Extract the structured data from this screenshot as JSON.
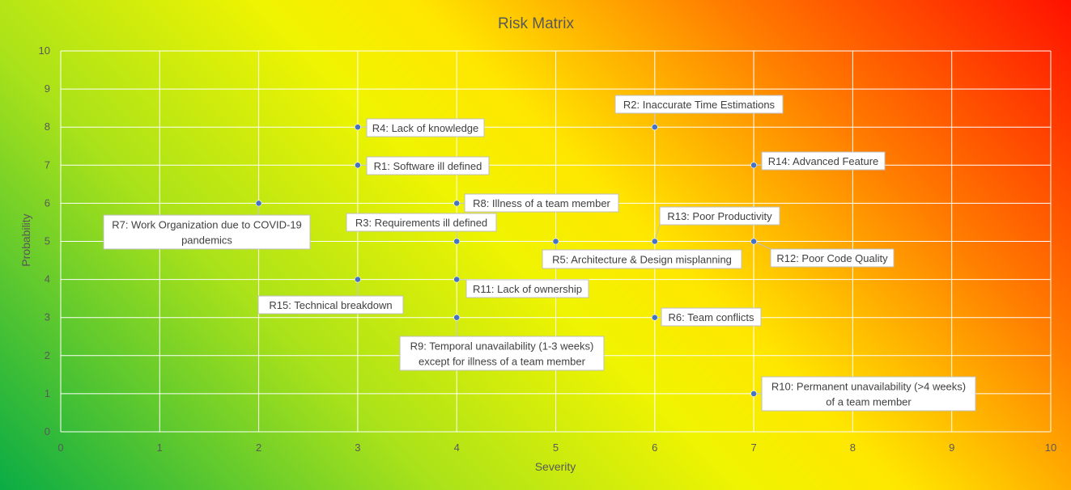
{
  "chart_data": {
    "type": "scatter",
    "title": "Risk Matrix",
    "xlabel": "Severity",
    "ylabel": "Probability",
    "xlim": [
      0,
      10
    ],
    "ylim": [
      0,
      10
    ],
    "xticks": [
      0,
      1,
      2,
      3,
      4,
      5,
      6,
      7,
      8,
      9,
      10
    ],
    "yticks": [
      0,
      1,
      2,
      3,
      4,
      5,
      6,
      7,
      8,
      9,
      10
    ],
    "grid": true,
    "background": "diagonal gradient green (bottom-left) to yellow to red (top-right)",
    "colors": {
      "point": "#4472c4",
      "grid": "#ffffff",
      "callout_fill": "#ffffff",
      "callout_border": "#bfbfbf",
      "text": "#595959"
    },
    "points": [
      {
        "id": "R1",
        "x": 3,
        "y": 7,
        "label": [
          "R1: Software ill defined"
        ]
      },
      {
        "id": "R2",
        "x": 6,
        "y": 8,
        "label": [
          "R2: Inaccurate Time Estimations"
        ]
      },
      {
        "id": "R3",
        "x": 4,
        "y": 5,
        "label": [
          "R3: Requirements ill defined"
        ]
      },
      {
        "id": "R4",
        "x": 3,
        "y": 8,
        "label": [
          "R4: Lack of knowledge"
        ]
      },
      {
        "id": "R5",
        "x": 5,
        "y": 5,
        "label": [
          "R5: Architecture & Design misplanning"
        ]
      },
      {
        "id": "R6",
        "x": 6,
        "y": 3,
        "label": [
          "R6: Team conflicts"
        ]
      },
      {
        "id": "R7",
        "x": 2,
        "y": 6,
        "label": [
          "R7: Work Organization due to COVID-19",
          "pandemics"
        ]
      },
      {
        "id": "R8",
        "x": 4,
        "y": 6,
        "label": [
          "R8: Illness of a team member"
        ]
      },
      {
        "id": "R9",
        "x": 4,
        "y": 3,
        "label": [
          "R9: Temporal unavailability (1-3 weeks)",
          "except for illness of a team member"
        ]
      },
      {
        "id": "R10",
        "x": 7,
        "y": 1,
        "label": [
          "R10: Permanent unavailability (>4 weeks)",
          "of a team member"
        ]
      },
      {
        "id": "R11",
        "x": 4,
        "y": 4,
        "label": [
          "R11: Lack of ownership"
        ]
      },
      {
        "id": "R12",
        "x": 7,
        "y": 5,
        "label": [
          "R12: Poor Code Quality"
        ]
      },
      {
        "id": "R13",
        "x": 6,
        "y": 5,
        "label": [
          "R13: Poor Productivity"
        ]
      },
      {
        "id": "R14",
        "x": 7,
        "y": 7,
        "label": [
          "R14: Advanced Feature"
        ]
      },
      {
        "id": "R15",
        "x": 3,
        "y": 4,
        "label": [
          "R15: Technical breakdown"
        ]
      }
    ]
  }
}
